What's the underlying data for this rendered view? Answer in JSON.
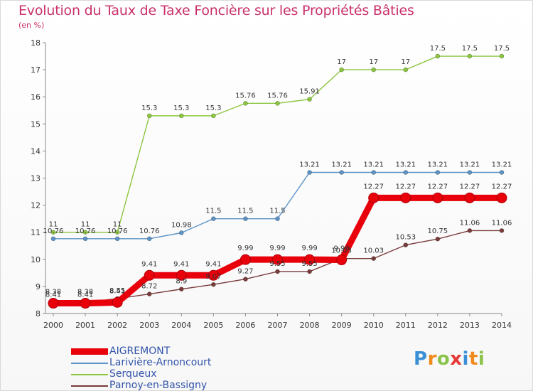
{
  "title": "Evolution du Taux de Taxe Foncière sur les Propriétés Bâties",
  "subtitle": "(en %)",
  "brand": {
    "letters": [
      "P",
      "r",
      "o",
      "x",
      "i",
      "t",
      "i"
    ],
    "colors": [
      "#3a8fd6",
      "#f08a1c",
      "#8bc34a",
      "#e53935",
      "#3a8fd6",
      "#f08a1c",
      "#8bc34a"
    ]
  },
  "chart_data": {
    "type": "line",
    "x": [
      "2000",
      "2001",
      "2002",
      "2003",
      "2004",
      "2005",
      "2006",
      "2007",
      "2008",
      "2009",
      "2010",
      "2011",
      "2012",
      "2013",
      "2014"
    ],
    "yticks": [
      "8",
      "9",
      "10",
      "11",
      "12",
      "13",
      "14",
      "15",
      "16",
      "17",
      "18"
    ],
    "ylim": [
      8,
      18
    ],
    "grid": false,
    "series": [
      {
        "name": "AIGREMONT",
        "color": "#e8000b",
        "values": [
          8.38,
          8.38,
          8.41,
          9.41,
          9.41,
          9.41,
          9.99,
          9.99,
          9.99,
          9.98,
          12.27,
          12.27,
          12.27,
          12.27,
          12.27
        ],
        "labels": [
          "8.38",
          "8.38",
          "8.41",
          "9.41",
          "9.41",
          "9.41",
          "9.99",
          "9.99",
          "9.99",
          "9.98",
          "12.27",
          "12.27",
          "12.27",
          "12.27",
          "12.27"
        ]
      },
      {
        "name": "Larivière-Arnoncourt",
        "color": "#5b93c7",
        "values": [
          10.76,
          10.76,
          10.76,
          10.76,
          10.98,
          11.5,
          11.5,
          11.5,
          13.21,
          13.21,
          13.21,
          13.21,
          13.21,
          13.21,
          13.21
        ],
        "labels": [
          "10.76",
          "10.76",
          "10.76",
          "10.76",
          "10.98",
          "11.5",
          "11.5",
          "11.5",
          "13.21",
          "13.21",
          "13.21",
          "13.21",
          "13.21",
          "13.21",
          "13.21"
        ]
      },
      {
        "name": "Serqueux",
        "color": "#8cc63f",
        "values": [
          11,
          11,
          11,
          15.3,
          15.3,
          15.3,
          15.76,
          15.76,
          15.91,
          17,
          17,
          17,
          17.5,
          17.5,
          17.5
        ],
        "labels": [
          "11",
          "11",
          "11",
          "15.3",
          "15.3",
          "15.3",
          "15.76",
          "15.76",
          "15.91",
          "17",
          "17",
          "17",
          "17.5",
          "17.5",
          "17.5"
        ]
      },
      {
        "name": "Parnoy-en-Bassigny",
        "color": "#7a3b3b",
        "values": [
          8.41,
          8.41,
          8.55,
          8.72,
          8.9,
          9.07,
          9.27,
          9.55,
          9.55,
          10.03,
          10.03,
          10.53,
          10.75,
          11.06,
          11.06
        ],
        "labels": [
          "8.41",
          "8.41",
          "8.55",
          "8.72",
          "8.9",
          "9.07",
          "9.27",
          "9.55",
          "9.55",
          "10.03",
          "10.03",
          "10.53",
          "10.75",
          "11.06",
          "11.06"
        ]
      }
    ]
  }
}
